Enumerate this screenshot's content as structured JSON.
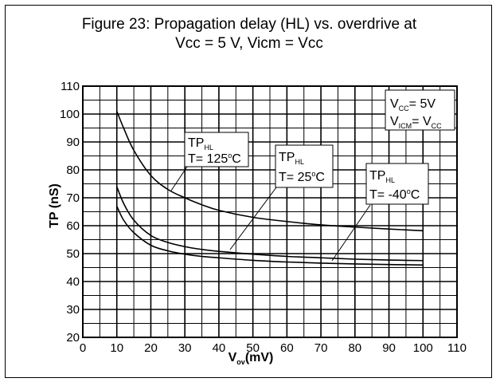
{
  "figure": {
    "title_line1": "Figure 23: Propagation delay (HL) vs. overdrive at",
    "title_line2": "Vcc = 5 V, Vicm = Vcc"
  },
  "chart_data": {
    "type": "line",
    "xlabel": {
      "main": "V",
      "sub": "ov",
      "unit": "(mV)"
    },
    "ylabel": "TP (nS)",
    "xlim": [
      0,
      110
    ],
    "ylim": [
      20,
      110
    ],
    "x_ticks": [
      "0",
      "10",
      "20",
      "30",
      "40",
      "50",
      "60",
      "70",
      "80",
      "90",
      "100",
      "110"
    ],
    "y_ticks": [
      "20",
      "30",
      "40",
      "50",
      "60",
      "70",
      "80",
      "90",
      "100",
      "110"
    ],
    "grid": true,
    "conditions": {
      "line1": {
        "a": "V",
        "a_sub": "CC",
        "b": "= 5V"
      },
      "line2": {
        "a": "V",
        "a_sub": "ICM",
        "b": "= V",
        "b_sub": "CC"
      }
    },
    "series": [
      {
        "label": {
          "tp": "TP",
          "tp_sub": "HL",
          "t": "T= 125",
          "t_sup": "o",
          "t_unit": "C"
        },
        "x": [
          10,
          12,
          15,
          20,
          25,
          30,
          35,
          40,
          50,
          60,
          70,
          80,
          90,
          100
        ],
        "y": [
          101,
          95,
          87,
          78,
          73,
          70,
          67.5,
          65.5,
          63,
          61.5,
          60.3,
          59.5,
          58.8,
          58.2
        ]
      },
      {
        "label": {
          "tp": "TP",
          "tp_sub": "HL",
          "t": "T= 25",
          "t_sup": "o",
          "t_unit": "C"
        },
        "x": [
          10,
          12,
          15,
          20,
          25,
          30,
          35,
          40,
          50,
          60,
          70,
          80,
          90,
          100
        ],
        "y": [
          74,
          68,
          62,
          56.5,
          54,
          52.5,
          51.5,
          50.8,
          49.8,
          49,
          48.5,
          48,
          47.7,
          47.5
        ]
      },
      {
        "label": {
          "tp": "TP",
          "tp_sub": "HL",
          "t": "T= -40",
          "t_sup": "o",
          "t_unit": "C"
        },
        "x": [
          10,
          12,
          15,
          20,
          25,
          30,
          35,
          40,
          50,
          60,
          70,
          80,
          90,
          100
        ],
        "y": [
          67,
          62,
          57.5,
          53,
          51,
          49.8,
          49,
          48.5,
          47.6,
          47,
          46.6,
          46.3,
          46.1,
          45.9
        ]
      }
    ]
  }
}
